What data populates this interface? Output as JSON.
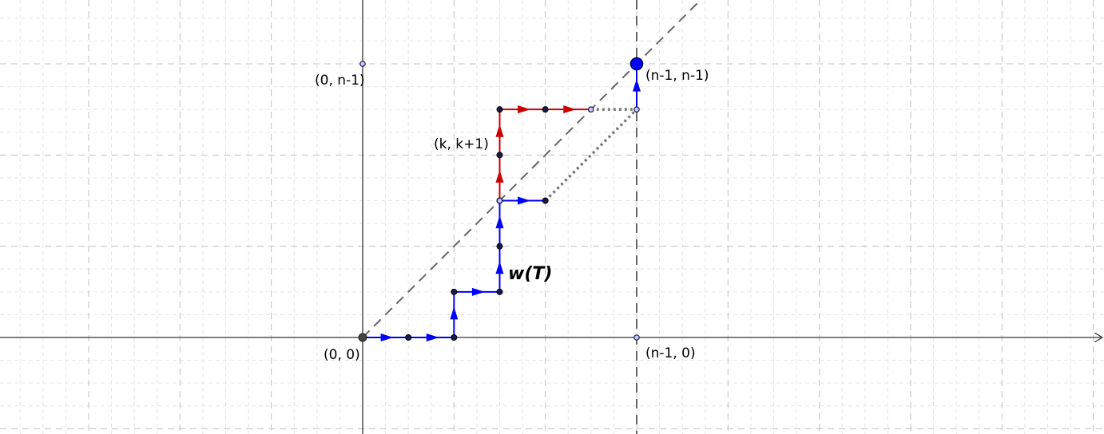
{
  "labels": {
    "origin": "(0, 0)",
    "top_left": "(0, n-1)",
    "top_right": "(n-1, n-1)",
    "bottom_right": "(n-1, 0)",
    "k_point": "(k, k+1)",
    "path_name": "w(T)"
  },
  "colors": {
    "blue_path": "#0000ff",
    "red_path": "#cc0000",
    "diagonal": "#666666",
    "dotted": "#777777",
    "grid_major": "#c0c0c0",
    "grid_minor": "#e6e6e6",
    "axis": "#333333"
  },
  "lattice": {
    "blue_path": [
      [
        0,
        0
      ],
      [
        0.5,
        0
      ],
      [
        1,
        0
      ],
      [
        1,
        0.5
      ],
      [
        1.5,
        0.5
      ],
      [
        1.5,
        1
      ],
      [
        1.5,
        1.5
      ],
      [
        2,
        1.5
      ]
    ],
    "red_path": [
      [
        1.5,
        1.5
      ],
      [
        1.5,
        2
      ],
      [
        1.5,
        2.5
      ],
      [
        2,
        2.5
      ],
      [
        2.5,
        2.5
      ]
    ],
    "final_step": [
      [
        3,
        2.5
      ],
      [
        3,
        3
      ]
    ],
    "dotted_segments": [
      [
        [
          2,
          1.5
        ],
        [
          3,
          2.5
        ]
      ],
      [
        [
          2.5,
          2.5
        ],
        [
          3,
          2.5
        ]
      ]
    ],
    "special_points": {
      "origin": [
        0,
        0
      ],
      "top_left": [
        0,
        3
      ],
      "top_right": [
        3,
        3
      ],
      "bottom_right": [
        3,
        0
      ]
    }
  }
}
